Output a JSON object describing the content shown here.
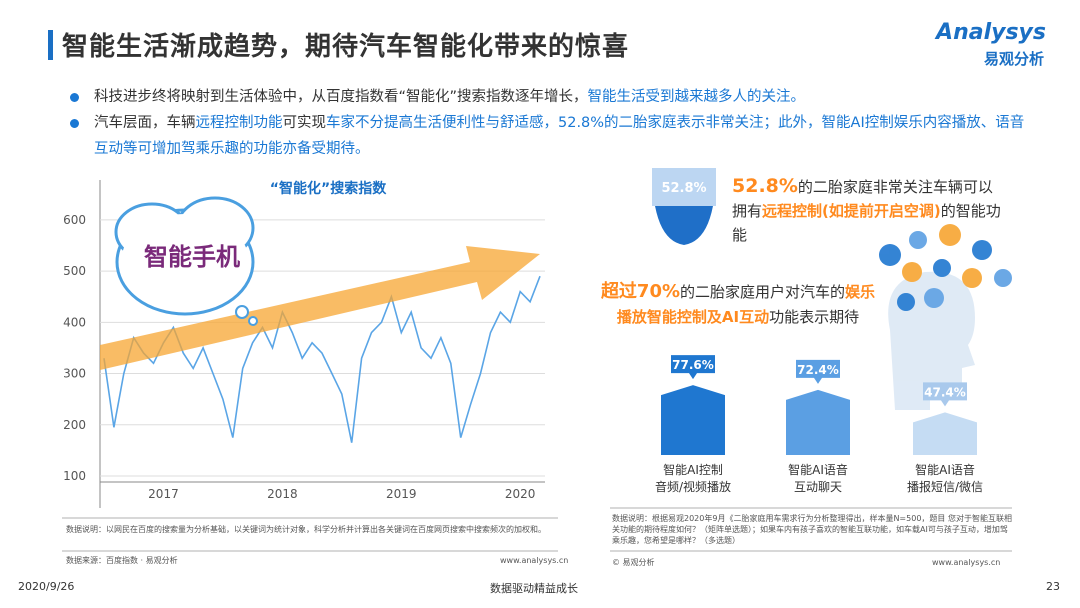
{
  "header": {
    "title": "智能生活渐成趋势，期待汽车智能化带来的惊喜",
    "logo": "Analysys",
    "logo_sub": "易观分析"
  },
  "bullets": [
    [
      "科技进步终将映射到生活体验中，从百度指数看“智能化”搜索指数逐年增长，",
      "智能生活受到越来越多人的关注。"
    ],
    [
      "汽车层面，车辆",
      "远程控制功能",
      "可实现",
      "车家不分提高生活便利性与舒适感，52.8%的二胎家庭表示非常关注；此外，智能AI控制娱乐内容播放、语音互动等可增加驾乘乐趣的功能亦备受期待。"
    ]
  ],
  "cloud_word": "智能手机",
  "callout_top": {
    "badge": "52.8%",
    "text": [
      "52.8%",
      "的二胎家庭非常关注车辆可以拥有",
      "远程控制(如提前开启空调)",
      "的智能功能"
    ]
  },
  "callout_mid": {
    "text": [
      "超过70%",
      "的二胎家庭用户对汽车的",
      "娱乐播放智能控制及AI互动",
      "功能表示期待"
    ]
  },
  "chart_data": [
    {
      "type": "line",
      "title": "“智能化”搜索指数",
      "color": "#5aa5e6",
      "categories": [
        null,
        null,
        null,
        null,
        null,
        null,
        "2017",
        null,
        null,
        null,
        null,
        null,
        null,
        null,
        null,
        null,
        null,
        null,
        "2018",
        null,
        null,
        null,
        null,
        null,
        null,
        null,
        null,
        null,
        null,
        null,
        "2019",
        null,
        null,
        null,
        null,
        null,
        null,
        null,
        null,
        null,
        null,
        null,
        "2020",
        null,
        null
      ],
      "values": [
        330,
        195,
        300,
        370,
        340,
        320,
        360,
        390,
        340,
        310,
        350,
        300,
        250,
        175,
        310,
        360,
        390,
        350,
        420,
        380,
        330,
        360,
        340,
        300,
        260,
        165,
        330,
        380,
        400,
        450,
        380,
        420,
        350,
        330,
        370,
        320,
        175,
        240,
        300,
        380,
        420,
        400,
        460,
        440,
        490
      ],
      "ylim": [
        100,
        670
      ],
      "yticks": [
        100,
        200,
        300,
        400,
        500,
        600
      ],
      "grid": true
    },
    {
      "type": "bar",
      "categories": [
        [
          "智能AI控制",
          "音频/视频播放"
        ],
        [
          "智能AI语音",
          "互动聊天"
        ],
        [
          "智能AI语音",
          "播报短信/微信"
        ]
      ],
      "values": [
        77.6,
        72.4,
        47.4
      ],
      "value_labels": [
        "77.6%",
        "72.4%",
        "47.4%"
      ],
      "colors": [
        "#1f77d0",
        "#5b9fe3",
        "#c5dcf3"
      ],
      "ylim": [
        0,
        100
      ]
    }
  ],
  "notes_left": {
    "note": "数据说明：以网民在百度的搜索量为分析基础，以关键词为统计对象，科学分析并计算出各关键词在百度网页搜索中搜索频次的加权和。",
    "source": "数据来源：百度指数 · 易观分析",
    "url": "www.analysys.cn"
  },
  "notes_right": {
    "note": "数据说明：根据易观2020年9月《二胎家庭用车需求行为分析整理得出，样本量N=500，题目 您对于智能互联相关功能的期待程度如何？（矩阵单选题）；如果车内有孩子喜欢的智能互联功能，如车载AI可与孩子互动，增加驾乘乐趣，您希望是哪样？（多选题）",
    "source": "© 易观分析",
    "url": "www.analysys.cn"
  },
  "footer": {
    "date": "2020/9/26",
    "slogan": "数据驱动精益成长",
    "page": "23"
  }
}
